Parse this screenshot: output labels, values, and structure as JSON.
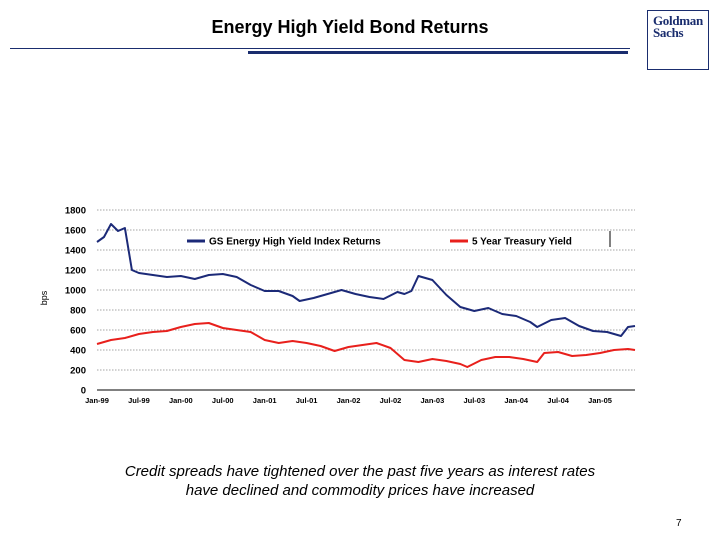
{
  "header": {
    "title": "Energy High Yield Bond Returns",
    "logo_line1": "Goldman",
    "logo_line2": "Sachs"
  },
  "caption": {
    "line1": "Credit spreads have tightened over the past five years as interest rates",
    "line2": "have declined and commodity prices have increased"
  },
  "page_number": "7",
  "colors": {
    "brand": "#1a2d6e",
    "series_blue": "#1c2a78",
    "series_red": "#e8201c"
  },
  "chart_data": {
    "type": "line",
    "ylabel": "bps",
    "ylim": [
      0,
      1800
    ],
    "yticks": [
      "0",
      "200",
      "400",
      "600",
      "800",
      "1000",
      "1200",
      "1400",
      "1600",
      "1800"
    ],
    "xticks": [
      "Jan-99",
      "Jul-99",
      "Jan-00",
      "Jul-00",
      "Jan-01",
      "Jul-01",
      "Jan-02",
      "Jul-02",
      "Jan-03",
      "Jul-03",
      "Jan-04",
      "Jul-04",
      "Jan-05"
    ],
    "grid": "horizontal dotted",
    "legend_position": "top",
    "series": [
      {
        "name": "GS Energy High Yield Index Returns",
        "color": "#1c2a78",
        "points": [
          [
            "1999-01",
            1480
          ],
          [
            "1999-02",
            1530
          ],
          [
            "1999-03",
            1660
          ],
          [
            "1999-04",
            1590
          ],
          [
            "1999-05",
            1620
          ],
          [
            "1999-06",
            1200
          ],
          [
            "1999-07",
            1170
          ],
          [
            "1999-09",
            1150
          ],
          [
            "1999-11",
            1130
          ],
          [
            "2000-01",
            1140
          ],
          [
            "2000-03",
            1110
          ],
          [
            "2000-05",
            1150
          ],
          [
            "2000-07",
            1160
          ],
          [
            "2000-09",
            1130
          ],
          [
            "2000-11",
            1050
          ],
          [
            "2001-01",
            990
          ],
          [
            "2001-03",
            990
          ],
          [
            "2001-05",
            940
          ],
          [
            "2001-06",
            890
          ],
          [
            "2001-08",
            920
          ],
          [
            "2001-10",
            960
          ],
          [
            "2001-12",
            1000
          ],
          [
            "2002-02",
            960
          ],
          [
            "2002-04",
            930
          ],
          [
            "2002-06",
            910
          ],
          [
            "2002-08",
            980
          ],
          [
            "2002-09",
            960
          ],
          [
            "2002-10",
            990
          ],
          [
            "2002-11",
            1140
          ],
          [
            "2003-01",
            1100
          ],
          [
            "2003-03",
            950
          ],
          [
            "2003-05",
            830
          ],
          [
            "2003-07",
            790
          ],
          [
            "2003-09",
            820
          ],
          [
            "2003-11",
            760
          ],
          [
            "2004-01",
            740
          ],
          [
            "2004-03",
            680
          ],
          [
            "2004-04",
            630
          ],
          [
            "2004-06",
            700
          ],
          [
            "2004-08",
            720
          ],
          [
            "2004-10",
            640
          ],
          [
            "2004-12",
            590
          ],
          [
            "2005-02",
            580
          ],
          [
            "2005-04",
            540
          ],
          [
            "2005-05",
            630
          ],
          [
            "2005-06",
            640
          ]
        ]
      },
      {
        "name": "5 Year Treasury Yield",
        "color": "#e8201c",
        "points": [
          [
            "1999-01",
            460
          ],
          [
            "1999-03",
            500
          ],
          [
            "1999-05",
            520
          ],
          [
            "1999-07",
            560
          ],
          [
            "1999-09",
            580
          ],
          [
            "1999-11",
            590
          ],
          [
            "2000-01",
            630
          ],
          [
            "2000-03",
            660
          ],
          [
            "2000-05",
            670
          ],
          [
            "2000-07",
            620
          ],
          [
            "2000-09",
            600
          ],
          [
            "2000-11",
            580
          ],
          [
            "2001-01",
            500
          ],
          [
            "2001-03",
            470
          ],
          [
            "2001-05",
            490
          ],
          [
            "2001-07",
            470
          ],
          [
            "2001-09",
            440
          ],
          [
            "2001-11",
            390
          ],
          [
            "2002-01",
            430
          ],
          [
            "2002-03",
            450
          ],
          [
            "2002-05",
            470
          ],
          [
            "2002-07",
            420
          ],
          [
            "2002-09",
            300
          ],
          [
            "2002-11",
            280
          ],
          [
            "2003-01",
            310
          ],
          [
            "2003-03",
            290
          ],
          [
            "2003-05",
            260
          ],
          [
            "2003-06",
            230
          ],
          [
            "2003-08",
            300
          ],
          [
            "2003-10",
            330
          ],
          [
            "2003-12",
            330
          ],
          [
            "2004-02",
            310
          ],
          [
            "2004-04",
            280
          ],
          [
            "2004-05",
            370
          ],
          [
            "2004-07",
            380
          ],
          [
            "2004-09",
            340
          ],
          [
            "2004-11",
            350
          ],
          [
            "2005-01",
            370
          ],
          [
            "2005-03",
            400
          ],
          [
            "2005-05",
            410
          ],
          [
            "2005-06",
            400
          ]
        ]
      }
    ]
  }
}
